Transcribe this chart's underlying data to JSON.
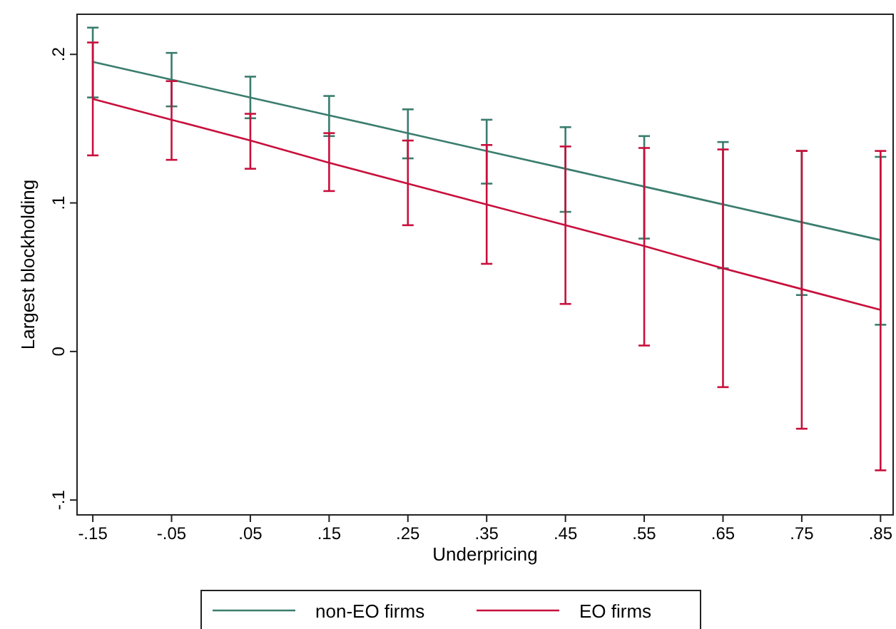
{
  "chart_data": {
    "type": "line",
    "xlabel": "Underpricing",
    "ylabel": "Largest blockholding",
    "x": [
      -0.15,
      -0.05,
      0.05,
      0.15,
      0.25,
      0.35,
      0.45,
      0.55,
      0.65,
      0.75,
      0.85
    ],
    "series": [
      {
        "name": "non-EO firms",
        "color": "#3a7d6e",
        "values": [
          0.195,
          0.183,
          0.171,
          0.159,
          0.147,
          0.135,
          0.123,
          0.111,
          0.099,
          0.087,
          0.075
        ],
        "errors": [
          [
            0.171,
            0.218
          ],
          [
            0.165,
            0.201
          ],
          [
            0.157,
            0.185
          ],
          [
            0.145,
            0.172
          ],
          [
            0.13,
            0.163
          ],
          [
            0.113,
            0.156
          ],
          [
            0.094,
            0.151
          ],
          [
            0.076,
            0.145
          ],
          [
            0.056,
            0.141
          ],
          [
            0.038,
            0.135
          ],
          [
            0.018,
            0.131
          ]
        ]
      },
      {
        "name": "EO firms",
        "color": "#c8103c",
        "values": [
          0.17,
          0.156,
          0.142,
          0.127,
          0.113,
          0.099,
          0.085,
          0.071,
          0.056,
          0.042,
          0.028
        ],
        "errors": [
          [
            0.132,
            0.208
          ],
          [
            0.129,
            0.182
          ],
          [
            0.123,
            0.16
          ],
          [
            0.108,
            0.147
          ],
          [
            0.085,
            0.142
          ],
          [
            0.059,
            0.139
          ],
          [
            0.032,
            0.138
          ],
          [
            0.004,
            0.137
          ],
          [
            -0.024,
            0.136
          ],
          [
            -0.052,
            0.135
          ],
          [
            -0.08,
            0.135
          ]
        ]
      }
    ],
    "xlim": [
      -0.17,
      0.866
    ],
    "ylim": [
      -0.11,
      0.227
    ],
    "xticks": [
      {
        "value": -0.15,
        "label": "-.15"
      },
      {
        "value": -0.05,
        "label": "-.05"
      },
      {
        "value": 0.05,
        "label": ".05"
      },
      {
        "value": 0.15,
        "label": ".15"
      },
      {
        "value": 0.25,
        "label": ".25"
      },
      {
        "value": 0.35,
        "label": ".35"
      },
      {
        "value": 0.45,
        "label": ".45"
      },
      {
        "value": 0.55,
        "label": ".55"
      },
      {
        "value": 0.65,
        "label": ".65"
      },
      {
        "value": 0.75,
        "label": ".75"
      },
      {
        "value": 0.85,
        "label": ".85"
      }
    ],
    "yticks": [
      {
        "value": -0.1,
        "label": "-.1"
      },
      0,
      {
        "value": 0.1,
        "label": ".1"
      },
      {
        "value": 0.2,
        "label": ".2"
      }
    ],
    "grid": false,
    "legend": "bottom",
    "marker": "none",
    "line_style": "solid"
  }
}
